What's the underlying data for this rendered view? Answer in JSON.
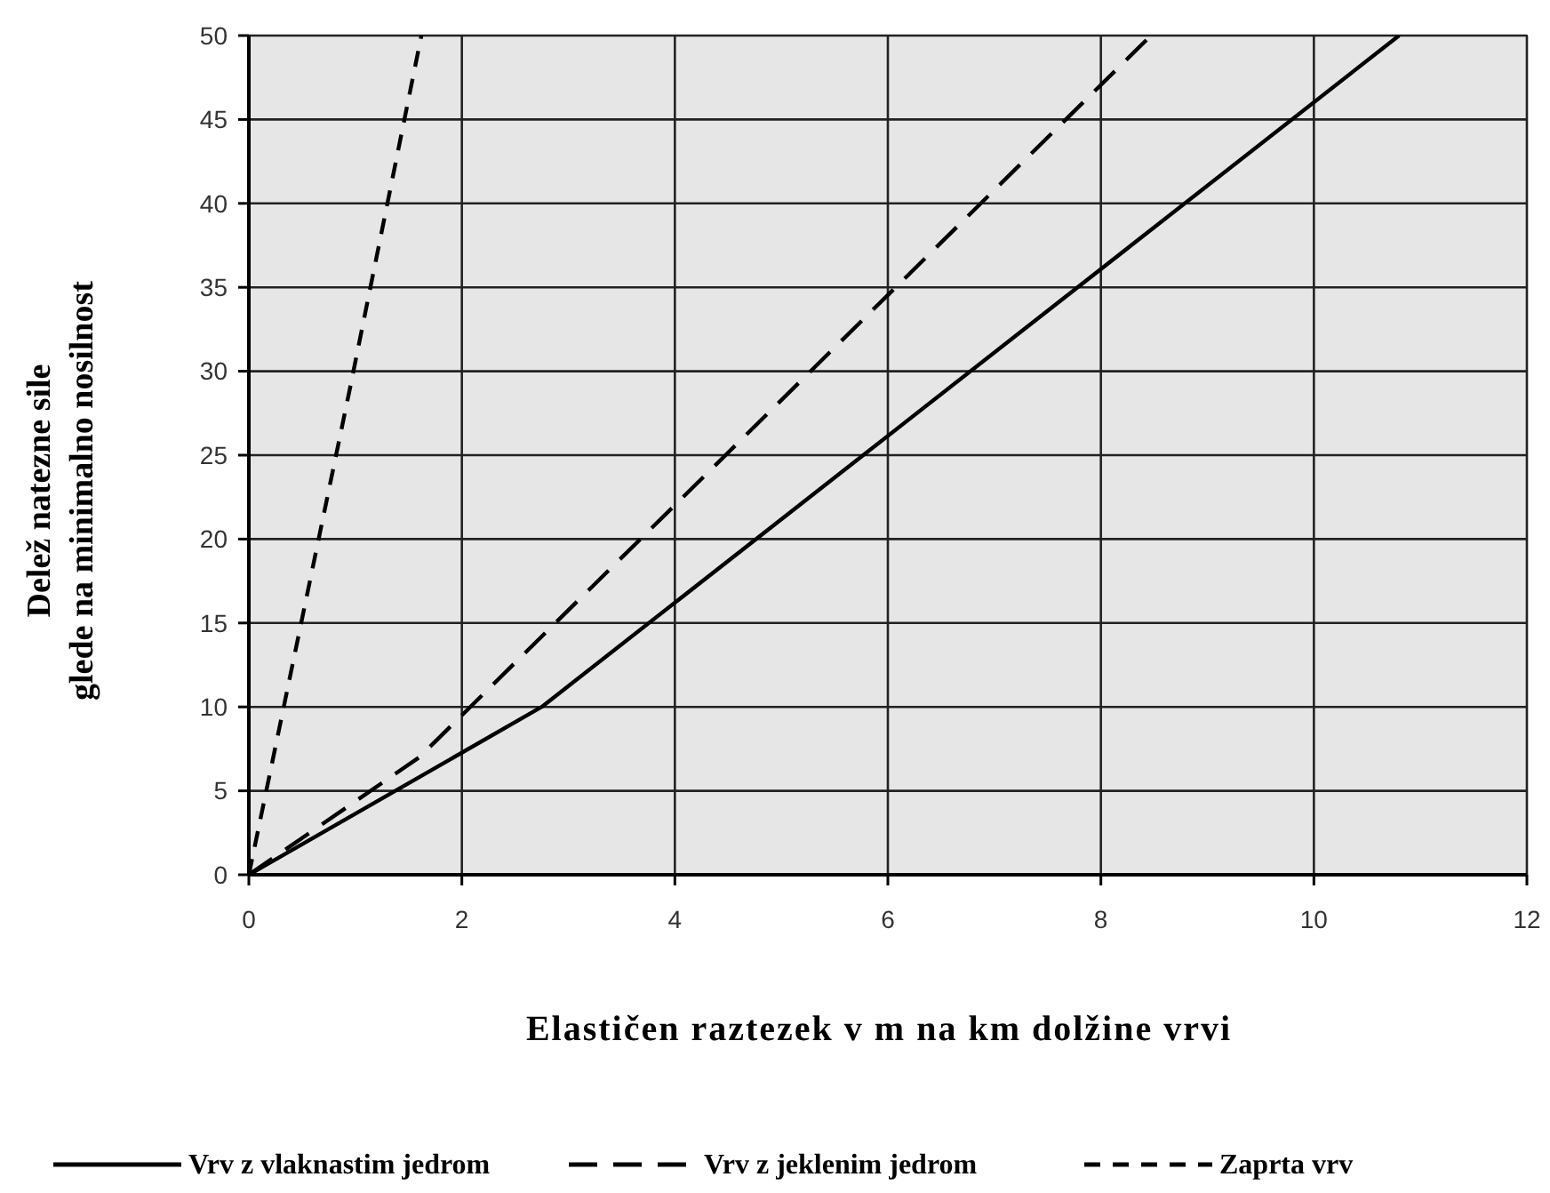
{
  "chart_data": {
    "type": "line",
    "xlabel": "Elastičen raztezek v m na km dolžine vrvi",
    "ylabel": "Delež natezne sile\nglede na minimalno nosilnost",
    "xlim": [
      0,
      12
    ],
    "xticks": [
      0,
      2,
      4,
      6,
      8,
      10,
      12
    ],
    "ylim": [
      0,
      50
    ],
    "yticks": [
      0,
      5,
      10,
      15,
      20,
      25,
      30,
      35,
      40,
      45,
      50
    ],
    "grid": true,
    "legend": "bottom",
    "marker": "none",
    "series": [
      {
        "name": "Vrv z vlaknastim jedrom",
        "color": "#000000",
        "line_style": "solid",
        "x": [
          0,
          2.75,
          10.8
        ],
        "values": [
          0,
          10,
          50
        ]
      },
      {
        "name": "Vrv z jeklenim jedrom",
        "color": "#000000",
        "line_style": "dashed",
        "x": [
          0,
          1.6,
          8.47
        ],
        "values": [
          0,
          7,
          50
        ]
      },
      {
        "name": "Zaprta vrv",
        "color": "#000000",
        "line_style": "dotted",
        "x": [
          0,
          0.95,
          1.62
        ],
        "values": [
          0,
          29,
          50
        ]
      }
    ]
  }
}
